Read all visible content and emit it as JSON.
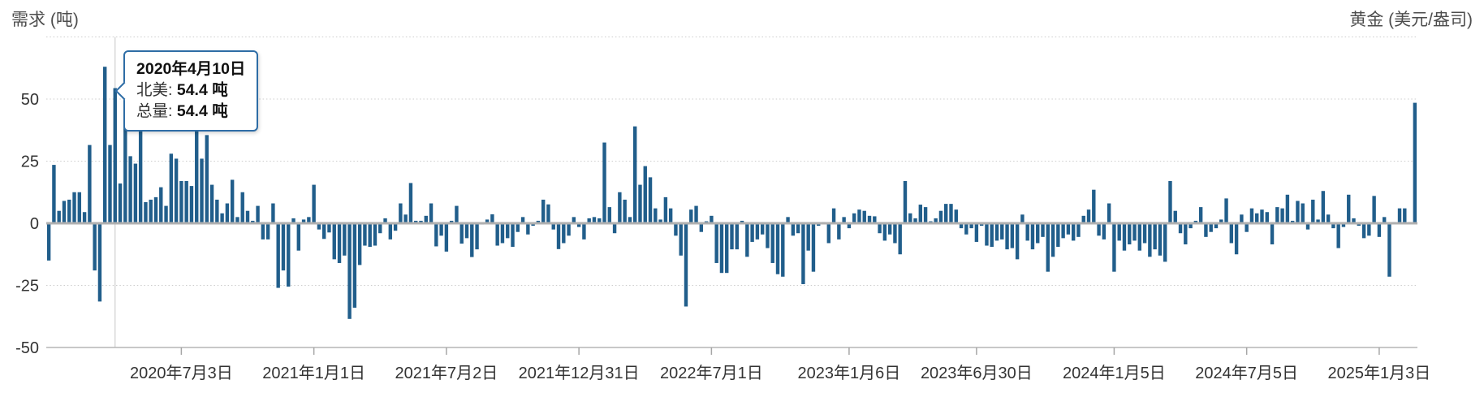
{
  "page": {
    "background": "#ffffff"
  },
  "header": {
    "left_axis_title": "需求 (吨)",
    "right_axis_title": "黄金 (美元/盎司)"
  },
  "tooltip": {
    "title": "2020年4月10日",
    "lines": [
      {
        "label": "北美:",
        "value": "54.4 吨"
      },
      {
        "label": "总量:",
        "value": "54.4 吨"
      }
    ],
    "border_color": "#2e6da6",
    "bar_index": 13
  },
  "chart_data": {
    "type": "bar",
    "title": "",
    "ylabel": "需求 (吨)",
    "y2label": "黄金 (美元/盎司)",
    "unit": "吨",
    "frequency": "weekly",
    "ylim": [
      -50,
      75
    ],
    "yticks": [
      50,
      25,
      0,
      -25,
      -50
    ],
    "grid": "horizontal-dotted",
    "legend": "none",
    "bar_color": "#215e8b",
    "x_tick_labels": [
      "2020年7月3日",
      "2021年1月1日",
      "2021年7月2日",
      "2021年12月31日",
      "2022年7月1日",
      "2023年1月6日",
      "2023年6月30日",
      "2024年1月5日",
      "2024年7月5日",
      "2025年1月3日"
    ],
    "x_tick_indices": [
      26,
      52,
      78,
      104,
      130,
      157,
      182,
      209,
      235,
      261
    ],
    "highlight": {
      "index": 13,
      "date": "2020年4月10日",
      "north_america": 54.4,
      "total": 54.4
    },
    "values": [
      -15,
      23.5,
      5,
      9,
      9.5,
      12.5,
      12.5,
      4.5,
      31.5,
      -19,
      -31.5,
      63,
      31.5,
      54.4,
      16,
      39,
      27,
      24,
      40,
      8.5,
      9.5,
      10.5,
      14.5,
      7,
      28,
      26,
      17,
      17,
      15,
      40,
      26,
      35.5,
      15.5,
      9.5,
      4,
      8,
      17.5,
      2.5,
      12.5,
      5,
      1,
      7,
      -6.5,
      -6.5,
      8,
      -26,
      -19,
      -25.5,
      2,
      -11,
      1.5,
      2.5,
      15.5,
      -2.5,
      -6.3,
      -3.7,
      -14.5,
      -16,
      -13,
      -38.5,
      -34,
      -16.8,
      -9,
      -9.5,
      -9,
      -4,
      2,
      -6.5,
      -3,
      8,
      3.5,
      16.2,
      1,
      1,
      3,
      8,
      -9.3,
      -5,
      -11.4,
      1,
      7,
      -8.2,
      -6,
      -13.6,
      -10.5,
      -0.5,
      1.5,
      3.6,
      -9,
      -8,
      -6,
      -9.5,
      -3.5,
      2.5,
      -4.5,
      -1,
      1,
      9.5,
      7.6,
      -2.5,
      -10.4,
      -8,
      -5,
      2.5,
      -1.5,
      -6.5,
      2,
      2.5,
      2,
      32.5,
      6.5,
      -4,
      12.5,
      9.5,
      2.5,
      39,
      15.5,
      23,
      18.5,
      6,
      1.5,
      10.5,
      6,
      -5,
      -13,
      -33.5,
      5.5,
      7,
      -3.5,
      0.8,
      3,
      -16,
      -20,
      -20,
      -10.5,
      -10.5,
      1,
      -13.5,
      -7.5,
      -6.5,
      -4.5,
      -10,
      -16,
      -20.5,
      -21.5,
      2.5,
      -5,
      -4,
      -24.5,
      -11,
      -19.5,
      -1,
      0.5,
      -8,
      6,
      -6.5,
      2.5,
      -2,
      4,
      5.5,
      5,
      3,
      2.8,
      -4,
      -7,
      -4.5,
      -8,
      -12.5,
      17,
      4,
      2,
      7.5,
      6.5,
      0.8,
      2,
      5,
      7.8,
      7.8,
      5.5,
      -2,
      -4.5,
      -2,
      -7.5,
      -1,
      -9,
      -9.5,
      -7,
      -6.5,
      -10.5,
      -10,
      -14.5,
      3.5,
      -7,
      -10.5,
      -8,
      -5.5,
      -19.5,
      -13.5,
      -9.5,
      -6,
      -4.5,
      -7,
      -5.5,
      3,
      5.5,
      13.5,
      -5,
      -6.5,
      8,
      -19.5,
      -7,
      -11,
      -8.5,
      -7,
      -11,
      -8,
      -13.5,
      -10.5,
      -13,
      -15.5,
      17,
      5,
      -4,
      -8.5,
      -2,
      1,
      6.5,
      -5.5,
      -3.5,
      -2,
      1.5,
      10,
      -8,
      -12.5,
      3.5,
      -3.5,
      6,
      4,
      5.5,
      4.5,
      -8.5,
      6.5,
      6,
      11.5,
      1,
      9,
      8,
      -2.5,
      9.5,
      1.5,
      13,
      3.5,
      -2,
      -10,
      -1.5,
      11.5,
      2,
      -1,
      -6,
      -5,
      11,
      -5.5,
      2.5,
      -21.5,
      0.5,
      6,
      6,
      0.5,
      48.5
    ]
  }
}
